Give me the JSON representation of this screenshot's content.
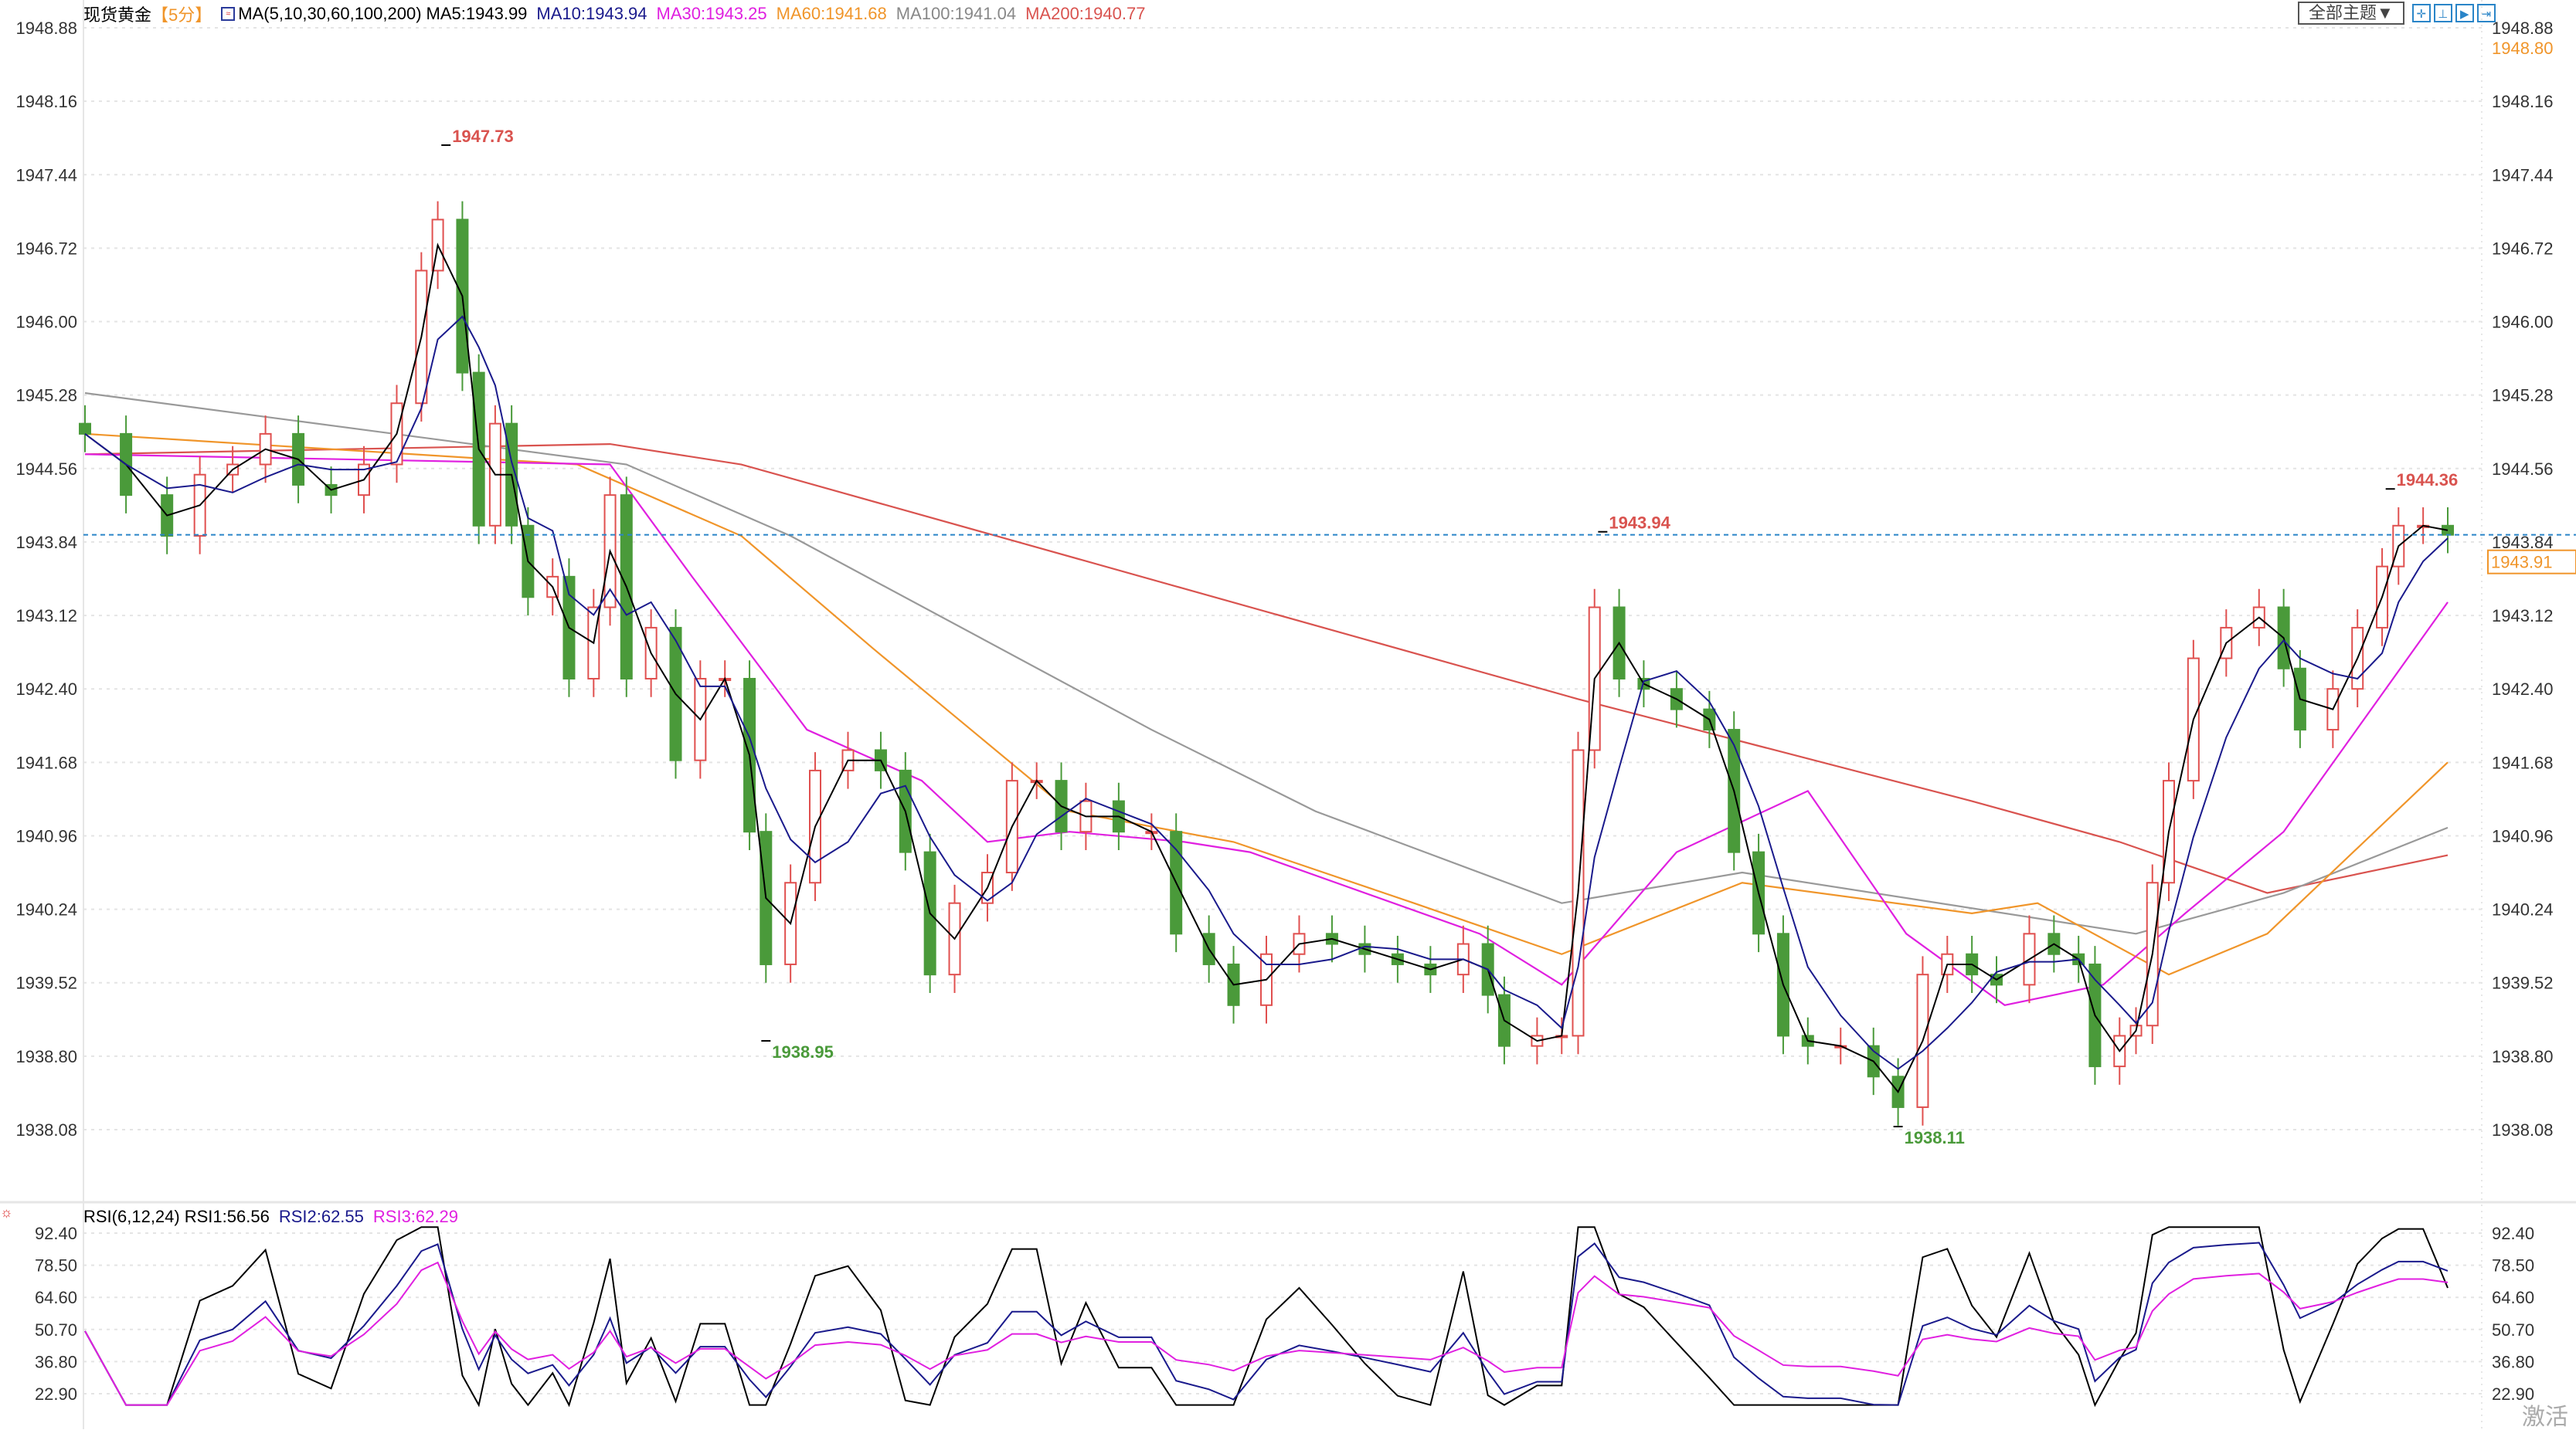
{
  "header": {
    "symbol": "现货黄金",
    "period": "【5分】",
    "ma_label": "MA(5,10,30,60,100,200)",
    "ma5": "MA5:1943.99",
    "ma10": "MA10:1943.94",
    "ma30": "MA30:1943.25",
    "ma60": "MA60:1941.68",
    "ma100": "MA100:1941.04",
    "ma200": "MA200:1940.77"
  },
  "toolbar": {
    "theme_label": "全部主题▼",
    "buttons": [
      "crosshair-icon",
      "zoom-range-icon",
      "play-icon",
      "exit-icon"
    ]
  },
  "rsi_header": {
    "label": "RSI(6,12,24)",
    "rsi1": "RSI1:56.56",
    "rsi2": "RSI2:62.55",
    "rsi3": "RSI3:62.29"
  },
  "watermark": "激活",
  "colors": {
    "up": "#e0504f",
    "down": "#4a9a3a",
    "ma5": "#000000",
    "ma10": "#1a1a8c",
    "ma30": "#e020e0",
    "ma60": "#f0952a",
    "ma100": "#999999",
    "ma200": "#d9534f",
    "rsi1": "#000000",
    "rsi2": "#1a1a8c",
    "rsi3": "#e020e0",
    "price_line": "#2a85c8",
    "price_tag": "#f0952a"
  },
  "chart_data": {
    "type": "candlestick",
    "price_ticks": [
      "1948.88",
      "1948.16",
      "1947.44",
      "1946.72",
      "1946.00",
      "1945.28",
      "1944.56",
      "1943.84",
      "1943.12",
      "1942.40",
      "1941.68",
      "1940.96",
      "1940.24",
      "1939.52",
      "1938.80",
      "1938.08"
    ],
    "ylim": [
      1938.08,
      1948.88
    ],
    "grid": true,
    "top_right_value": "1948.80",
    "current_price": "1943.91",
    "annotations": [
      {
        "index": 44,
        "value": "1947.73",
        "kind": "high"
      },
      {
        "index": 83,
        "value": "1938.95",
        "kind": "low"
      },
      {
        "index": 185,
        "value": "1943.94",
        "kind": "high"
      },
      {
        "index": 221,
        "value": "1938.11",
        "kind": "low"
      },
      {
        "index": 281,
        "value": "1944.36",
        "kind": "high"
      }
    ],
    "x_max_index": 288,
    "closes": [
      [
        0,
        1944.9
      ],
      [
        5,
        1944.3
      ],
      [
        10,
        1943.9
      ],
      [
        14,
        1944.5
      ],
      [
        18,
        1944.6
      ],
      [
        22,
        1944.9
      ],
      [
        26,
        1944.4
      ],
      [
        30,
        1944.3
      ],
      [
        34,
        1944.6
      ],
      [
        38,
        1945.2
      ],
      [
        41,
        1946.5
      ],
      [
        43,
        1947.0
      ],
      [
        46,
        1945.5
      ],
      [
        48,
        1944.0
      ],
      [
        50,
        1945.0
      ],
      [
        52,
        1944.0
      ],
      [
        54,
        1943.3
      ],
      [
        57,
        1943.5
      ],
      [
        59,
        1942.5
      ],
      [
        62,
        1943.2
      ],
      [
        64,
        1944.3
      ],
      [
        66,
        1942.5
      ],
      [
        69,
        1943.0
      ],
      [
        72,
        1941.7
      ],
      [
        75,
        1942.5
      ],
      [
        78,
        1942.5
      ],
      [
        81,
        1941.0
      ],
      [
        83,
        1939.7
      ],
      [
        86,
        1940.5
      ],
      [
        89,
        1941.6
      ],
      [
        93,
        1941.8
      ],
      [
        97,
        1941.6
      ],
      [
        100,
        1940.8
      ],
      [
        103,
        1939.6
      ],
      [
        106,
        1940.3
      ],
      [
        110,
        1940.6
      ],
      [
        113,
        1941.5
      ],
      [
        116,
        1941.5
      ],
      [
        119,
        1941.0
      ],
      [
        122,
        1941.3
      ],
      [
        126,
        1941.0
      ],
      [
        130,
        1941.0
      ],
      [
        133,
        1940.0
      ],
      [
        137,
        1939.7
      ],
      [
        140,
        1939.3
      ],
      [
        144,
        1939.8
      ],
      [
        148,
        1940.0
      ],
      [
        152,
        1939.9
      ],
      [
        156,
        1939.8
      ],
      [
        160,
        1939.7
      ],
      [
        164,
        1939.6
      ],
      [
        168,
        1939.9
      ],
      [
        171,
        1939.4
      ],
      [
        173,
        1938.9
      ],
      [
        177,
        1939.0
      ],
      [
        180,
        1939.0
      ],
      [
        182,
        1941.8
      ],
      [
        184,
        1943.2
      ],
      [
        187,
        1942.5
      ],
      [
        190,
        1942.4
      ],
      [
        194,
        1942.2
      ],
      [
        198,
        1942.0
      ],
      [
        201,
        1940.8
      ],
      [
        204,
        1940.0
      ],
      [
        207,
        1939.0
      ],
      [
        210,
        1938.9
      ],
      [
        214,
        1938.9
      ],
      [
        218,
        1938.6
      ],
      [
        221,
        1938.3
      ],
      [
        224,
        1939.6
      ],
      [
        227,
        1939.8
      ],
      [
        230,
        1939.6
      ],
      [
        233,
        1939.5
      ],
      [
        237,
        1940.0
      ],
      [
        240,
        1939.8
      ],
      [
        243,
        1939.7
      ],
      [
        245,
        1938.7
      ],
      [
        248,
        1939.0
      ],
      [
        250,
        1939.1
      ],
      [
        252,
        1940.5
      ],
      [
        254,
        1941.5
      ],
      [
        257,
        1942.7
      ],
      [
        261,
        1943.0
      ],
      [
        265,
        1943.2
      ],
      [
        268,
        1942.6
      ],
      [
        270,
        1942.0
      ],
      [
        274,
        1942.4
      ],
      [
        277,
        1943.0
      ],
      [
        280,
        1943.6
      ],
      [
        282,
        1944.0
      ],
      [
        285,
        1944.0
      ],
      [
        288,
        1943.91
      ]
    ],
    "moving_averages": {
      "ma30": [
        [
          0,
          1944.7
        ],
        [
          64,
          1944.6
        ],
        [
          74,
          1943.5
        ],
        [
          88,
          1942.0
        ],
        [
          102,
          1941.5
        ],
        [
          110,
          1940.9
        ],
        [
          120,
          1941.0
        ],
        [
          134,
          1940.9
        ],
        [
          142,
          1940.8
        ],
        [
          170,
          1940.0
        ],
        [
          180,
          1939.5
        ],
        [
          194,
          1940.8
        ],
        [
          210,
          1941.4
        ],
        [
          222,
          1940.0
        ],
        [
          234,
          1939.3
        ],
        [
          246,
          1939.5
        ],
        [
          256,
          1940.2
        ],
        [
          268,
          1941.0
        ],
        [
          288,
          1943.25
        ]
      ],
      "ma60": [
        [
          0,
          1944.9
        ],
        [
          60,
          1944.6
        ],
        [
          80,
          1943.9
        ],
        [
          96,
          1942.8
        ],
        [
          120,
          1941.2
        ],
        [
          140,
          1940.9
        ],
        [
          162,
          1940.3
        ],
        [
          180,
          1939.8
        ],
        [
          202,
          1940.5
        ],
        [
          230,
          1940.2
        ],
        [
          238,
          1940.3
        ],
        [
          254,
          1939.6
        ],
        [
          266,
          1940.0
        ],
        [
          288,
          1941.68
        ]
      ],
      "ma100": [
        [
          0,
          1945.3
        ],
        [
          66,
          1944.6
        ],
        [
          86,
          1943.9
        ],
        [
          130,
          1942.0
        ],
        [
          150,
          1941.2
        ],
        [
          180,
          1940.3
        ],
        [
          202,
          1940.6
        ],
        [
          250,
          1940.0
        ],
        [
          268,
          1940.4
        ],
        [
          288,
          1941.04
        ]
      ],
      "ma200": [
        [
          0,
          1944.7
        ],
        [
          64,
          1944.8
        ],
        [
          80,
          1944.6
        ],
        [
          182,
          1942.3
        ],
        [
          230,
          1941.3
        ],
        [
          248,
          1940.9
        ],
        [
          266,
          1940.4
        ],
        [
          288,
          1940.77
        ]
      ]
    },
    "rsi_ticks": [
      "92.40",
      "78.50",
      "64.60",
      "50.70",
      "36.80",
      "22.90"
    ],
    "rsi_ylim": [
      22.9,
      92.4
    ],
    "rsi_periods": [
      6,
      12,
      24
    ]
  }
}
